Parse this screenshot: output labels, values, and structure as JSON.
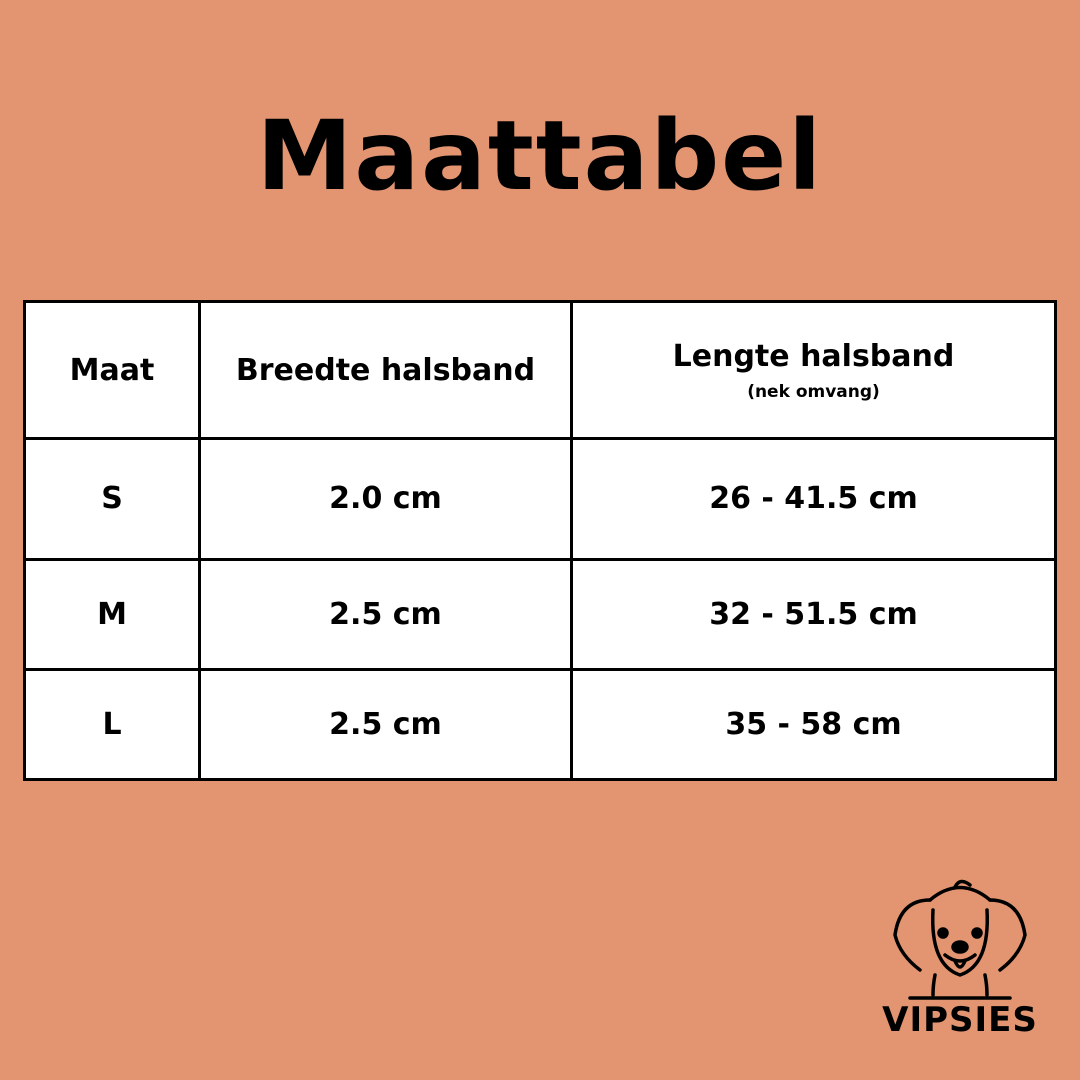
{
  "title": "Maattabel",
  "table": {
    "headers": [
      {
        "label": "Maat"
      },
      {
        "label": "Breedte halsband"
      },
      {
        "label": "Lengte halsband",
        "sub": "(nek omvang)"
      }
    ],
    "rows": [
      {
        "size": "S",
        "width": "2.0 cm",
        "length": "26 - 41.5 cm"
      },
      {
        "size": "M",
        "width": "2.5 cm",
        "length": "32 - 51.5 cm"
      },
      {
        "size": "L",
        "width": "2.5 cm",
        "length": "35 - 58 cm"
      }
    ]
  },
  "logo": {
    "text": "VIPSIES",
    "icon": "dog-face-icon"
  },
  "colors": {
    "background": "#E39572",
    "table": "#FFFFFF",
    "border": "#000000"
  }
}
